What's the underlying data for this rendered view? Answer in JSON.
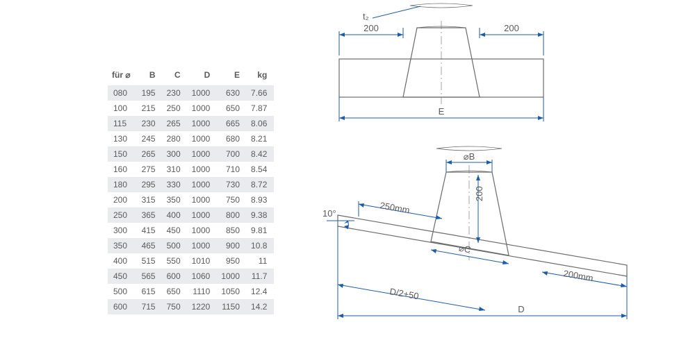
{
  "table": {
    "columns": [
      "für ⌀",
      "B",
      "C",
      "D",
      "E",
      "kg"
    ],
    "rows": [
      [
        "080",
        "195",
        "230",
        "1000",
        "630",
        "7.66"
      ],
      [
        "100",
        "215",
        "250",
        "1000",
        "650",
        "7.87"
      ],
      [
        "115",
        "230",
        "265",
        "1000",
        "665",
        "8.06"
      ],
      [
        "130",
        "245",
        "280",
        "1000",
        "680",
        "8.21"
      ],
      [
        "150",
        "265",
        "300",
        "1000",
        "700",
        "8.42"
      ],
      [
        "160",
        "275",
        "310",
        "1000",
        "710",
        "8.54"
      ],
      [
        "180",
        "295",
        "330",
        "1000",
        "730",
        "8.72"
      ],
      [
        "200",
        "315",
        "350",
        "1000",
        "750",
        "8.93"
      ],
      [
        "250",
        "365",
        "400",
        "1000",
        "800",
        "9.38"
      ],
      [
        "300",
        "415",
        "450",
        "1000",
        "850",
        "9.81"
      ],
      [
        "350",
        "465",
        "500",
        "1000",
        "900",
        "10.8"
      ],
      [
        "400",
        "515",
        "550",
        "1010",
        "950",
        "11"
      ],
      [
        "450",
        "565",
        "600",
        "1060",
        "1000",
        "11.7"
      ],
      [
        "500",
        "615",
        "650",
        "1110",
        "1050",
        "12.4"
      ],
      [
        "600",
        "715",
        "750",
        "1220",
        "1150",
        "14.2"
      ]
    ],
    "stripe_row_indices": [
      0,
      2,
      4,
      6,
      8,
      10,
      12,
      14
    ],
    "font_size": 12,
    "header_color": "#5a5a5a",
    "cell_color": "#5a5a5a",
    "stripe_color": "#e9ebee",
    "background": "#ffffff"
  },
  "diagram": {
    "dim_line_color": "#1e5ba8",
    "part_stroke": "#6a6a6a",
    "label_color": "#5a5a5a",
    "label_fontsize": 13,
    "top_view": {
      "labels": {
        "t2": "t₂",
        "left_200": "200",
        "right_200": "200",
        "E": "E"
      }
    },
    "angled_view": {
      "labels": {
        "phiB": "⌀B",
        "phiC": "⌀C",
        "v200": "200",
        "r250": "250mm",
        "r200mm": "200mm",
        "angle": "10°",
        "half": "D/2+50",
        "D": "D"
      }
    }
  }
}
